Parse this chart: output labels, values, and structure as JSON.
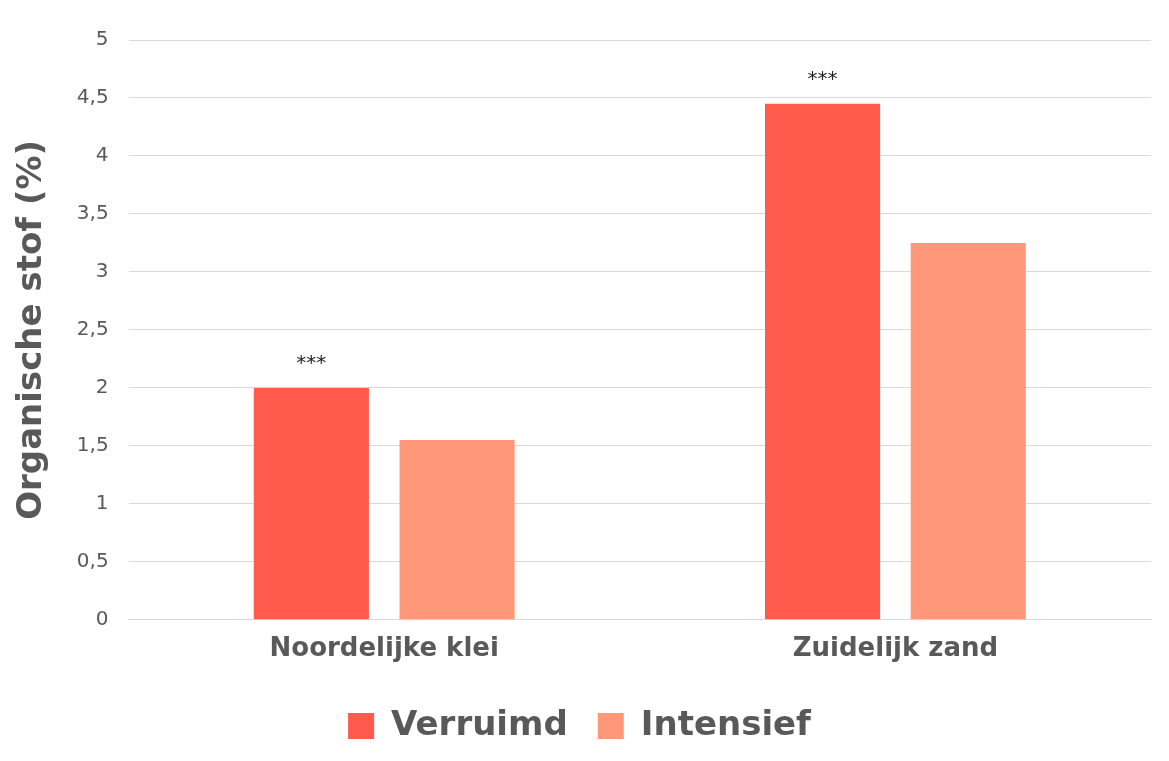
{
  "chart_data": {
    "type": "bar",
    "ylabel": "Organische stof (%)",
    "categories": [
      "Noordelijke klei",
      "Zuidelijk zand"
    ],
    "series": [
      {
        "name": "Verruimd",
        "color": "#ff5a4b",
        "values": [
          2.0,
          4.45
        ]
      },
      {
        "name": "Intensief",
        "color": "#ff9878",
        "values": [
          1.55,
          3.25
        ]
      }
    ],
    "ylim": [
      0,
      5
    ],
    "yticks": [
      0,
      {
        "value": 0.5,
        "label": "0,5"
      },
      1,
      {
        "value": 1.5,
        "label": "1,5"
      },
      2,
      {
        "value": 2.5,
        "label": "2,5"
      },
      3,
      {
        "value": 3.5,
        "label": "3,5"
      },
      4,
      {
        "value": 4.5,
        "label": "4,5"
      },
      5
    ],
    "grid": "y",
    "legend": "bottom",
    "annotations": [
      "***",
      "***"
    ]
  }
}
